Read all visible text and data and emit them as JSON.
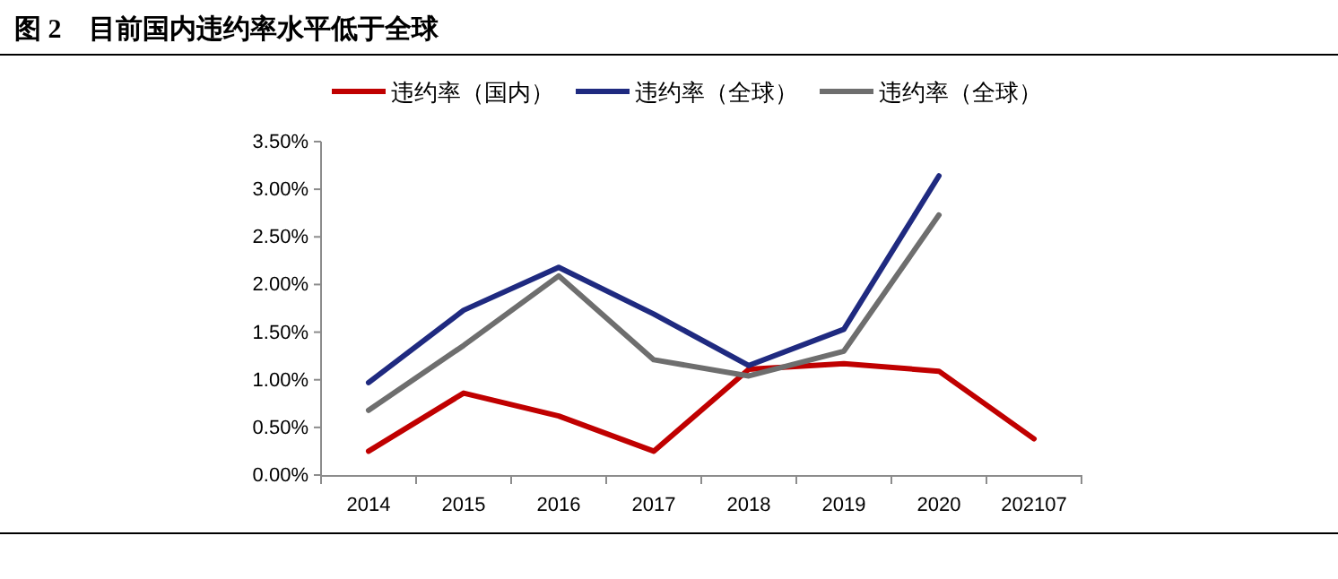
{
  "chart_data": {
    "type": "line",
    "title": "图 2    目前国内违约率水平低于全球",
    "categories": [
      "2014",
      "2015",
      "2016",
      "2017",
      "2018",
      "2019",
      "2020",
      "202107"
    ],
    "series": [
      {
        "name": "违约率（国内）",
        "color": "#c00000",
        "values": [
          0.25,
          0.86,
          0.62,
          0.25,
          1.11,
          1.17,
          1.09,
          0.38
        ]
      },
      {
        "name": "违约率（全球）",
        "color": "#1f2a80",
        "values": [
          0.97,
          1.73,
          2.18,
          1.69,
          1.15,
          1.53,
          3.14,
          null
        ]
      },
      {
        "name": "违约率（全球）",
        "color": "#6e6e6e",
        "values": [
          0.68,
          1.36,
          2.09,
          1.21,
          1.04,
          1.3,
          2.73,
          null
        ]
      }
    ],
    "ylim": [
      0,
      3.5
    ],
    "yticks": [
      {
        "value": 0,
        "label": "0.00%"
      },
      {
        "value": 0.5,
        "label": "0.50%"
      },
      {
        "value": 1,
        "label": "1.00%"
      },
      {
        "value": 1.5,
        "label": "1.50%"
      },
      {
        "value": 2,
        "label": "2.00%"
      },
      {
        "value": 2.5,
        "label": "2.50%"
      },
      {
        "value": 3,
        "label": "3.00%"
      },
      {
        "value": 3.5,
        "label": "3.50%"
      }
    ],
    "legend": "top"
  }
}
